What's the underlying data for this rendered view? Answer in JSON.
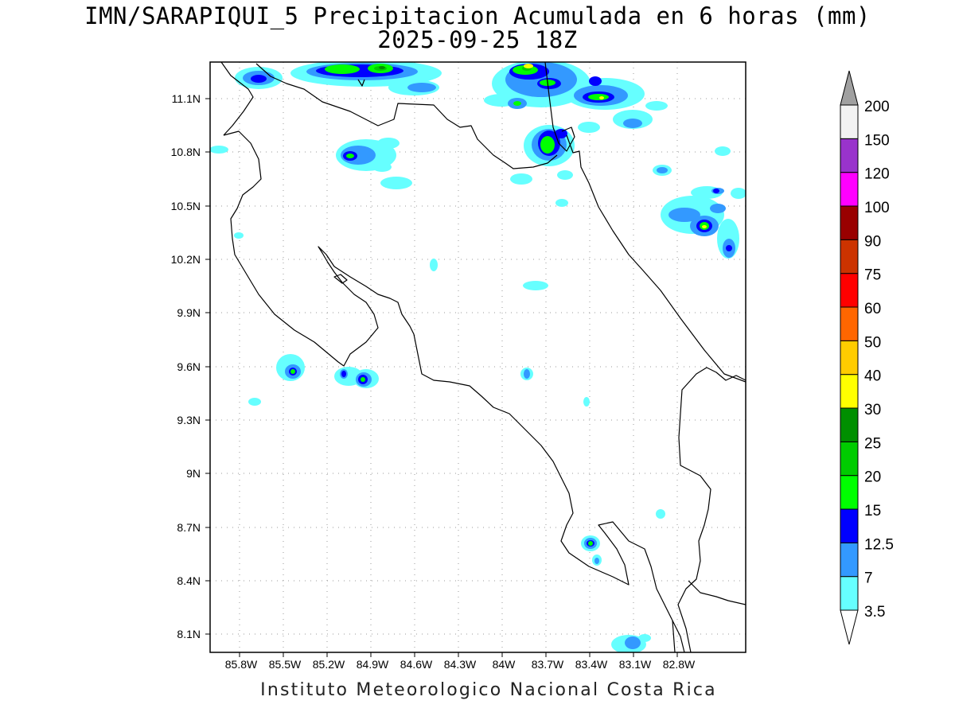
{
  "title_line1": "IMN/SARAPIQUI_5 Precipitacion Acumulada en 6 horas (mm)",
  "title_line2": "2025-09-25 18Z",
  "credit": "Instituto Meteorologico Nacional Costa Rica",
  "map": {
    "region": "Costa Rica",
    "lat_range": [
      7.98,
      11.33
    ],
    "lon_range": [
      -85.97,
      -82.95
    ],
    "lat_ticks": [
      "11.1N",
      "10.8N",
      "10.5N",
      "10.2N",
      "9.9N",
      "9.6N",
      "9.3N",
      "9N",
      "8.7N",
      "8.4N",
      "8.1N"
    ],
    "lon_ticks": [
      "85.8W",
      "85.5W",
      "85.2W",
      "84.9W",
      "84.6W",
      "84.3W",
      "84W",
      "83.7W",
      "83.4W",
      "83.1W",
      "82.8W"
    ],
    "grid": "dotted",
    "coastline_color": "#000000"
  },
  "colorbar": {
    "unit": "mm",
    "levels": [
      "3.5",
      "7",
      "12.5",
      "15",
      "20",
      "25",
      "30",
      "40",
      "50",
      "60",
      "75",
      "90",
      "100",
      "120",
      "150",
      "200"
    ],
    "colors": [
      "#66ffff",
      "#3399ff",
      "#0000ff",
      "#00ff00",
      "#00cc00",
      "#008f00",
      "#ffff00",
      "#ffcc00",
      "#ff6600",
      "#ff0000",
      "#cc3300",
      "#990000",
      "#ff00ff",
      "#9933cc",
      "#f2f2f2",
      "#a0a0a0"
    ]
  }
}
